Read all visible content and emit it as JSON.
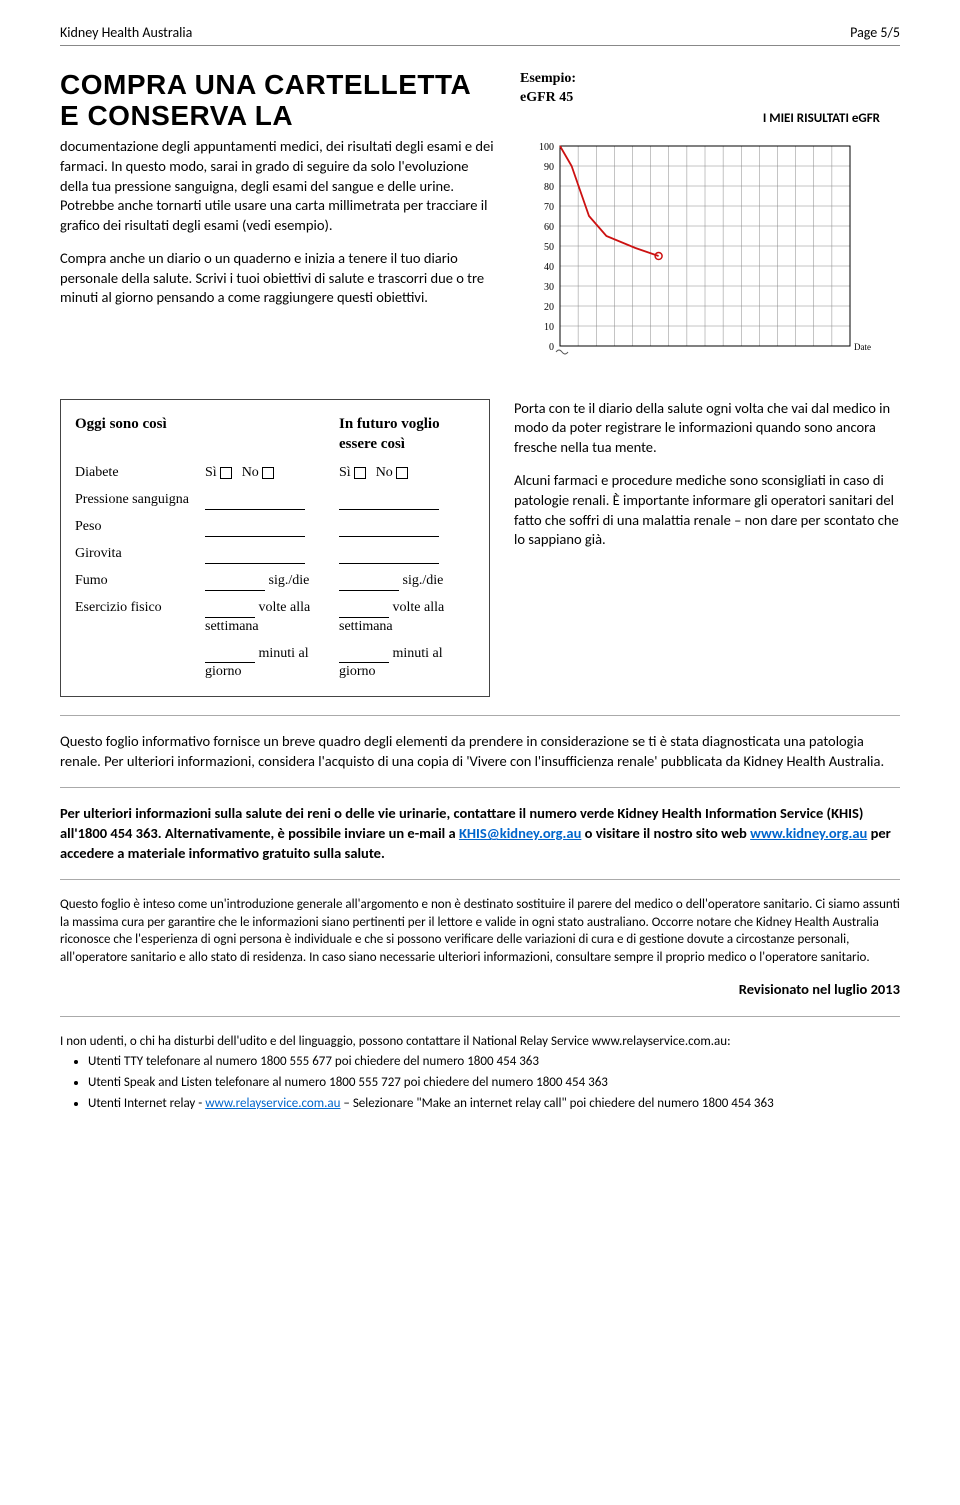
{
  "header": {
    "org": "Kidney Health Australia",
    "page": "Page 5/5"
  },
  "title": "COMPRA UNA CARTELLETTA E CONSERVA LA",
  "p1": "documentazione degli appuntamenti medici, dei risultati degli esami e dei farmaci. In questo modo, sarai in grado di seguire da solo l'evoluzione della tua pressione sanguigna, degli esami del sangue e delle urine. Potrebbe anche tornarti utile usare una carta millimetrata per tracciare il grafico dei risultati degli esami (vedi esempio).",
  "p2": "Compra anche un diario o un quaderno e inizia a tenere il tuo diario personale della salute. Scrivi i tuoi obiettivi di salute e trascorri due o tre minuti al giorno pensando a come raggiungere questi obiettivi.",
  "chart": {
    "example_label": "Esempio:",
    "example_value": "eGFR 45",
    "title": "I MIEI RISULTATI eGFR",
    "y_max": 100,
    "y_min": 0,
    "y_step": 10,
    "y_ticks": [
      100,
      90,
      80,
      70,
      60,
      50,
      40,
      30,
      20,
      10,
      0
    ],
    "x_cols": 16,
    "curve": [
      [
        0,
        100
      ],
      [
        4,
        90
      ],
      [
        10,
        65
      ],
      [
        16,
        55
      ],
      [
        26,
        49
      ],
      [
        34,
        45
      ]
    ],
    "point": [
      34,
      45
    ],
    "axis_color": "#000",
    "grid_color": "#888",
    "curve_color": "#cc1111",
    "date_label": "Date"
  },
  "form": {
    "head_left": "Oggi sono così",
    "head_right": "In futuro voglio essere così",
    "rows": {
      "diabete": "Diabete",
      "si": "Sì",
      "no": "No",
      "press": "Pressione sanguigna",
      "peso": "Peso",
      "giro": "Girovita",
      "fumo": "Fumo",
      "sigdie": "sig./die",
      "eser": "Esercizio fisico",
      "volte": "volte alla settimana",
      "minuti": "minuti al giorno"
    }
  },
  "p3": "Porta con te il diario della salute ogni volta che vai dal medico in modo da poter registrare le informazioni quando sono ancora fresche nella tua mente.",
  "p4": "Alcuni farmaci e procedure mediche sono sconsigliati in caso di patologie renali. È importante informare gli operatori sanitari del fatto che soffri di una malattia renale – non dare per scontato che lo sappiano già.",
  "p5": "Questo foglio informativo fornisce un breve quadro degli elementi da prendere in considerazione se ti è stata diagnosticata una patologia renale. Per ulteriori informazioni, considera l'acquisto di una copia di 'Vivere con l'insufficienza renale' pubblicata da Kidney Health Australia.",
  "contact": {
    "pre": "Per ulteriori informazioni sulla salute dei reni o delle vie urinarie, contattare il numero verde Kidney Health Information Service (KHIS) all'1800 454 363. Alternativamente, è possibile inviare un e-mail a ",
    "email": "KHIS@kidney.org.au",
    "mid": " o visitare il nostro sito web ",
    "web": "www.kidney.org.au",
    "post": " per accedere a materiale informativo gratuito sulla salute."
  },
  "disclaimer": "Questo foglio è inteso come un'introduzione generale all'argomento e non è destinato sostituire il parere del medico o dell'operatore sanitario. Ci siamo assunti la massima cura per garantire che le informazioni siano pertinenti per il lettore e valide in ogni stato australiano. Occorre notare che Kidney Health Australia riconosce che l'esperienza di ogni persona è individuale e che si possono verificare delle variazioni di cura e di gestione dovute a circostanze personali, all'operatore sanitario e allo stato di residenza. In caso siano necessarie ulteriori informazioni, consultare sempre il proprio medico o l'operatore sanitario.",
  "revised": "Revisionato nel luglio 2013",
  "relay": {
    "intro": "I non udenti, o chi ha disturbi dell'udito e del linguaggio, possono contattare il National Relay Service www.relayservice.com.au:",
    "b1": "Utenti TTY telefonare al numero 1800 555 677 poi chiedere del numero 1800 454 363",
    "b2": "Utenti Speak and Listen telefonare al numero 1800 555 727 poi chiedere del numero 1800 454 363",
    "b3_pre": "Utenti Internet relay - ",
    "b3_link": "www.relayservice.com.au",
    "b3_post": " – Selezionare \"Make an internet relay call\" poi chiedere del numero 1800 454 363"
  }
}
